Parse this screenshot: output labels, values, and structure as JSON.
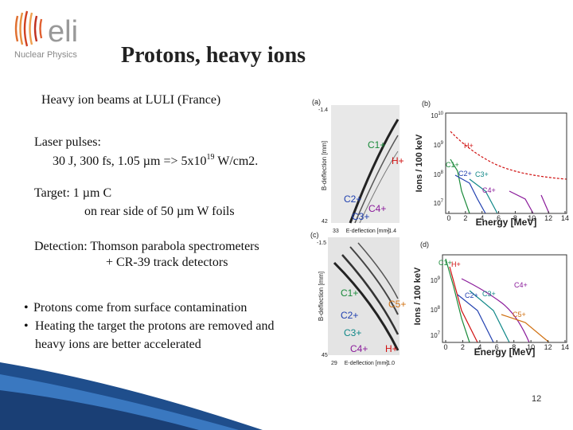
{
  "logo": {
    "name": "eli",
    "subtitle": "Nuclear Physics"
  },
  "title": "Protons, heavy ions",
  "subtitle": "Heavy ion beams at LULI (France)",
  "laser": {
    "heading": "Laser pulses:",
    "line": "30 J, 300 fs, 1.05 µm => 5x10",
    "sup": "19",
    "after": " W/cm2."
  },
  "target": {
    "line1": "Target:   1 µm C",
    "line2": "on rear side of 50 µm W foils"
  },
  "detection": {
    "line1": "Detection: Thomson parabola spectrometers",
    "line2": "+ CR-39 track detectors"
  },
  "bullets": [
    [
      "Protons come from surface contamination"
    ],
    [
      "Heating the target the protons are removed and",
      "heavy ions  are better  accelerated"
    ]
  ],
  "figure": {
    "a": {
      "label": "(a)",
      "y_axis": "B-deflection [mm]",
      "x_axis": "E-deflection [mm]",
      "ticks": [
        "-1.4",
        "42",
        "33",
        "-1.4"
      ],
      "species": [
        {
          "text": "C1+",
          "color": "#1a8a3a"
        },
        {
          "text": "H+",
          "color": "#d01010"
        },
        {
          "text": "C2+",
          "color": "#2040b0"
        },
        {
          "text": "C4+",
          "color": "#8a1a9a"
        },
        {
          "text": "C3+",
          "color": "#2040b0"
        }
      ]
    },
    "b": {
      "label": "(b)",
      "y_axis": "Ions / 100 keV",
      "x_axis": "Energy [MeV]",
      "yticks": [
        {
          "base": "10",
          "exp": "10"
        },
        {
          "base": "10",
          "exp": "9"
        },
        {
          "base": "10",
          "exp": "8"
        },
        {
          "base": "10",
          "exp": "7"
        }
      ],
      "xticks": [
        0,
        2,
        4,
        6,
        8,
        10,
        12,
        14
      ],
      "species": [
        {
          "text": "H+",
          "color": "#d01010"
        },
        {
          "text": "C1+",
          "color": "#1a8a3a"
        },
        {
          "text": "C2+",
          "color": "#2040b0"
        },
        {
          "text": "C3+",
          "color": "#108888"
        },
        {
          "text": "C4+",
          "color": "#8a1a9a"
        }
      ]
    },
    "c": {
      "label": "(c)",
      "y_axis": "B-deflection [mm]",
      "x_axis": "E-deflection [mm]",
      "ticks": [
        "-1.5",
        "45",
        "29",
        "-1.0"
      ],
      "species": [
        {
          "text": "C1+",
          "color": "#1a8a3a"
        },
        {
          "text": "C5+",
          "color": "#d07010"
        },
        {
          "text": "C2+",
          "color": "#2040b0"
        },
        {
          "text": "C3+",
          "color": "#108888"
        },
        {
          "text": "C4+",
          "color": "#8a1a9a"
        },
        {
          "text": "H+",
          "color": "#d01010"
        }
      ]
    },
    "d": {
      "label": "(d)",
      "y_axis": "Ions / 100 keV",
      "x_axis": "Energy [MeV]",
      "yticks": [
        {
          "base": "10",
          "exp": "9"
        },
        {
          "base": "10",
          "exp": "8"
        },
        {
          "base": "10",
          "exp": "7"
        }
      ],
      "xticks": [
        0,
        2,
        4,
        6,
        8,
        10,
        12,
        14
      ],
      "species": [
        {
          "text": "C1+",
          "color": "#1a8a3a"
        },
        {
          "text": "H+",
          "color": "#d01010"
        },
        {
          "text": "C4+",
          "color": "#8a1a9a"
        },
        {
          "text": "C2+",
          "color": "#2040b0"
        },
        {
          "text": "C3+",
          "color": "#108888"
        },
        {
          "text": "C5+",
          "color": "#d07010"
        }
      ]
    }
  },
  "page_number": "12"
}
